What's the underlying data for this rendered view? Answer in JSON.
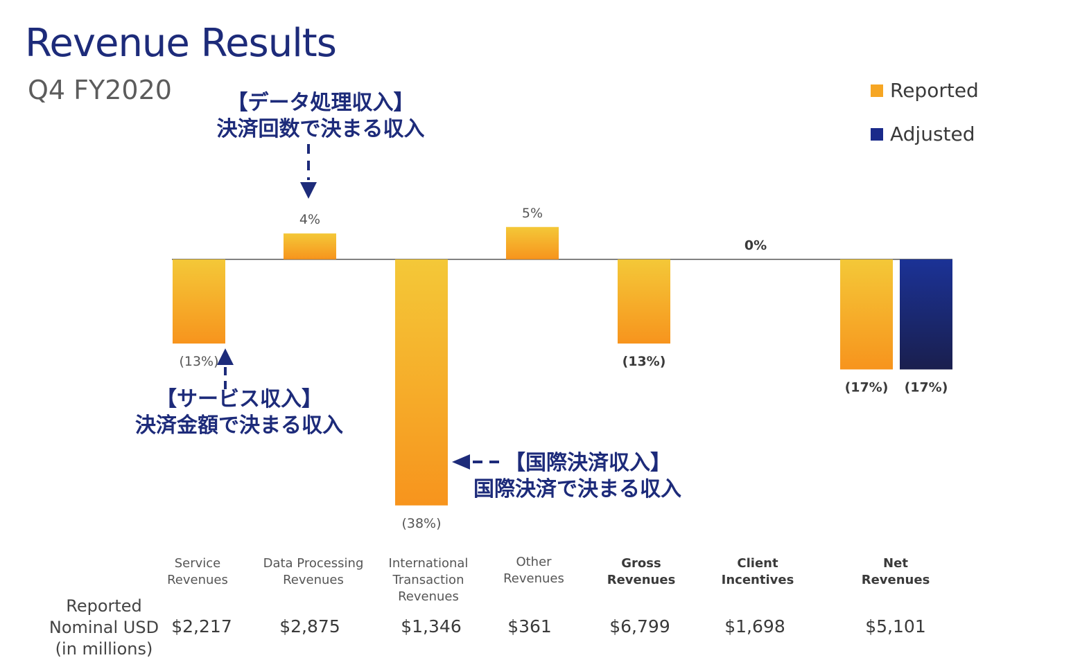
{
  "header": {
    "title": "Revenue Results",
    "subtitle": "Q4 FY2020"
  },
  "legend": {
    "reported": "Reported",
    "adjusted": "Adjusted",
    "reported_color": "#f6a623",
    "adjusted_color": "#1a2a8a"
  },
  "annotations": {
    "data_processing": [
      "【データ処理収入】",
      "決済回数で決まる収入"
    ],
    "service": [
      "【サービス収入】",
      "決済金額で決まる収入"
    ],
    "international": [
      "【国際決済収入】",
      "国際決済で決まる収入"
    ]
  },
  "table": {
    "row_label": [
      "Reported",
      "Nominal USD",
      "(in millions)"
    ]
  },
  "chart_data": {
    "type": "bar",
    "categories": [
      {
        "label": [
          "Service",
          "Revenues"
        ],
        "bold": false,
        "nominal": "$2,217"
      },
      {
        "label": [
          "Data Processing",
          "Revenues"
        ],
        "bold": false,
        "nominal": "$2,875"
      },
      {
        "label": [
          "International",
          "Transaction",
          "Revenues"
        ],
        "bold": false,
        "nominal": "$1,346"
      },
      {
        "label": [
          "Other",
          "Revenues"
        ],
        "bold": false,
        "nominal": "$361"
      },
      {
        "label": [
          "Gross",
          "Revenues"
        ],
        "bold": true,
        "nominal": "$6,799"
      },
      {
        "label": [
          "Client",
          "Incentives"
        ],
        "bold": true,
        "nominal": "$1,698"
      },
      {
        "label": [
          "Net",
          "Revenues"
        ],
        "bold": true,
        "nominal": "$5,101"
      }
    ],
    "series": [
      {
        "name": "Reported",
        "values": [
          -13,
          4,
          -38,
          5,
          -13,
          0,
          -17
        ],
        "labels": [
          "(13%)",
          "4%",
          "(38%)",
          "5%",
          "(13%)",
          "0%",
          "(17%)"
        ]
      },
      {
        "name": "Adjusted",
        "values": [
          null,
          null,
          null,
          null,
          null,
          null,
          -17
        ],
        "labels": [
          null,
          null,
          null,
          null,
          null,
          null,
          "(17%)"
        ]
      }
    ],
    "ylim": [
      -38,
      5
    ],
    "grid": false,
    "legend_position": "top-right"
  }
}
